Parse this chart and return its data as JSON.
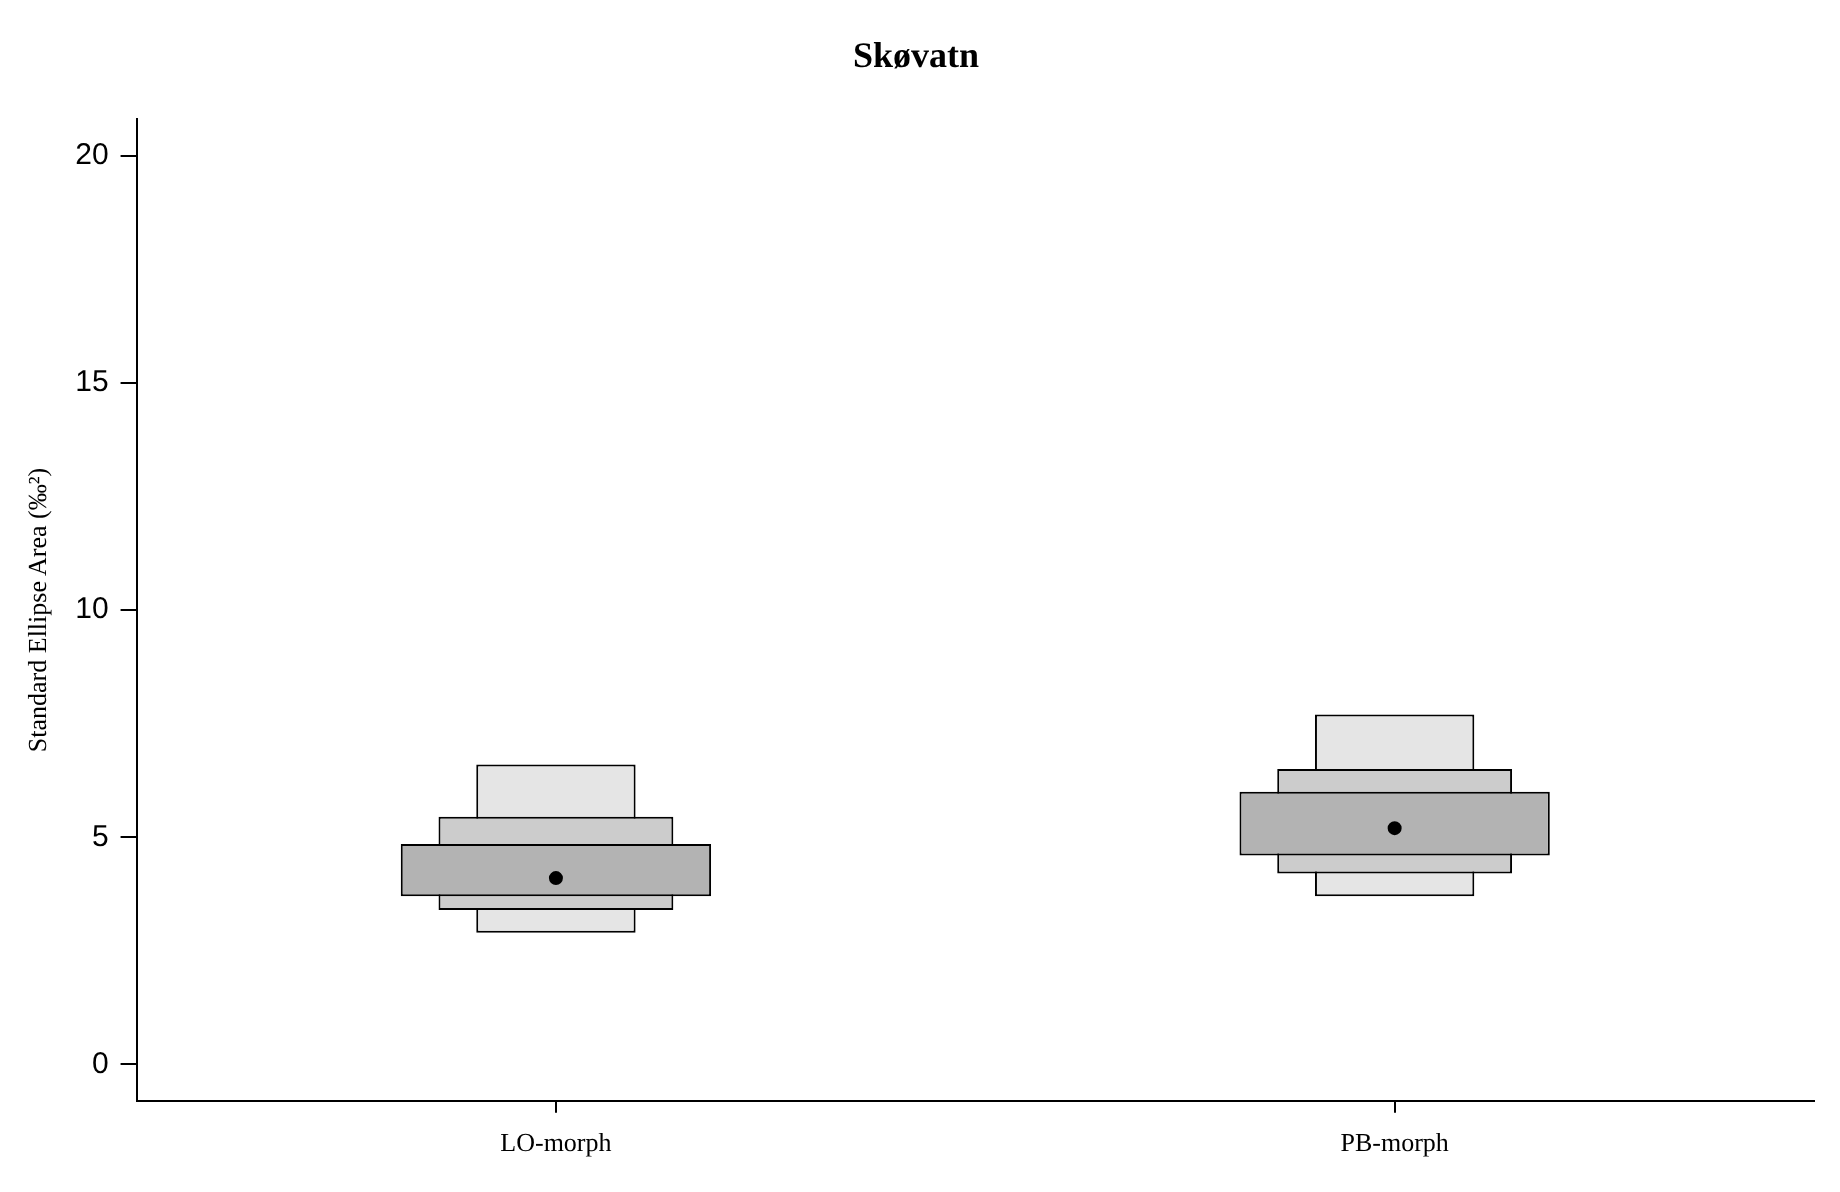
{
  "chart_data": {
    "type": "bar",
    "title": "Skøvatn",
    "ylabel": "Standard Ellipse Area (‰²)",
    "categories": [
      "LO-morph",
      "PB-morph"
    ],
    "series": [
      {
        "color": "#e5e5e5",
        "base": [
          2.9,
          3.7
        ],
        "values": [
          3.7,
          4.0
        ]
      },
      {
        "color": "#cccccc",
        "base": [
          3.4,
          4.2
        ],
        "values": [
          2.05,
          2.3
        ]
      },
      {
        "color": "#b3b3b3",
        "base": [
          3.7,
          4.6
        ],
        "values": [
          1.15,
          1.4
        ]
      },
      {
        "type": "scatter",
        "color": "#000000",
        "x": [
          "LO-morph",
          "PB-morph"
        ],
        "values": [
          4.1,
          5.2
        ],
        "marker": "circle"
      }
    ],
    "ylim": [
      -0.8,
      20.8
    ],
    "yticks": [
      0,
      5,
      10,
      15,
      20
    ],
    "grid": false,
    "legend": false
  }
}
